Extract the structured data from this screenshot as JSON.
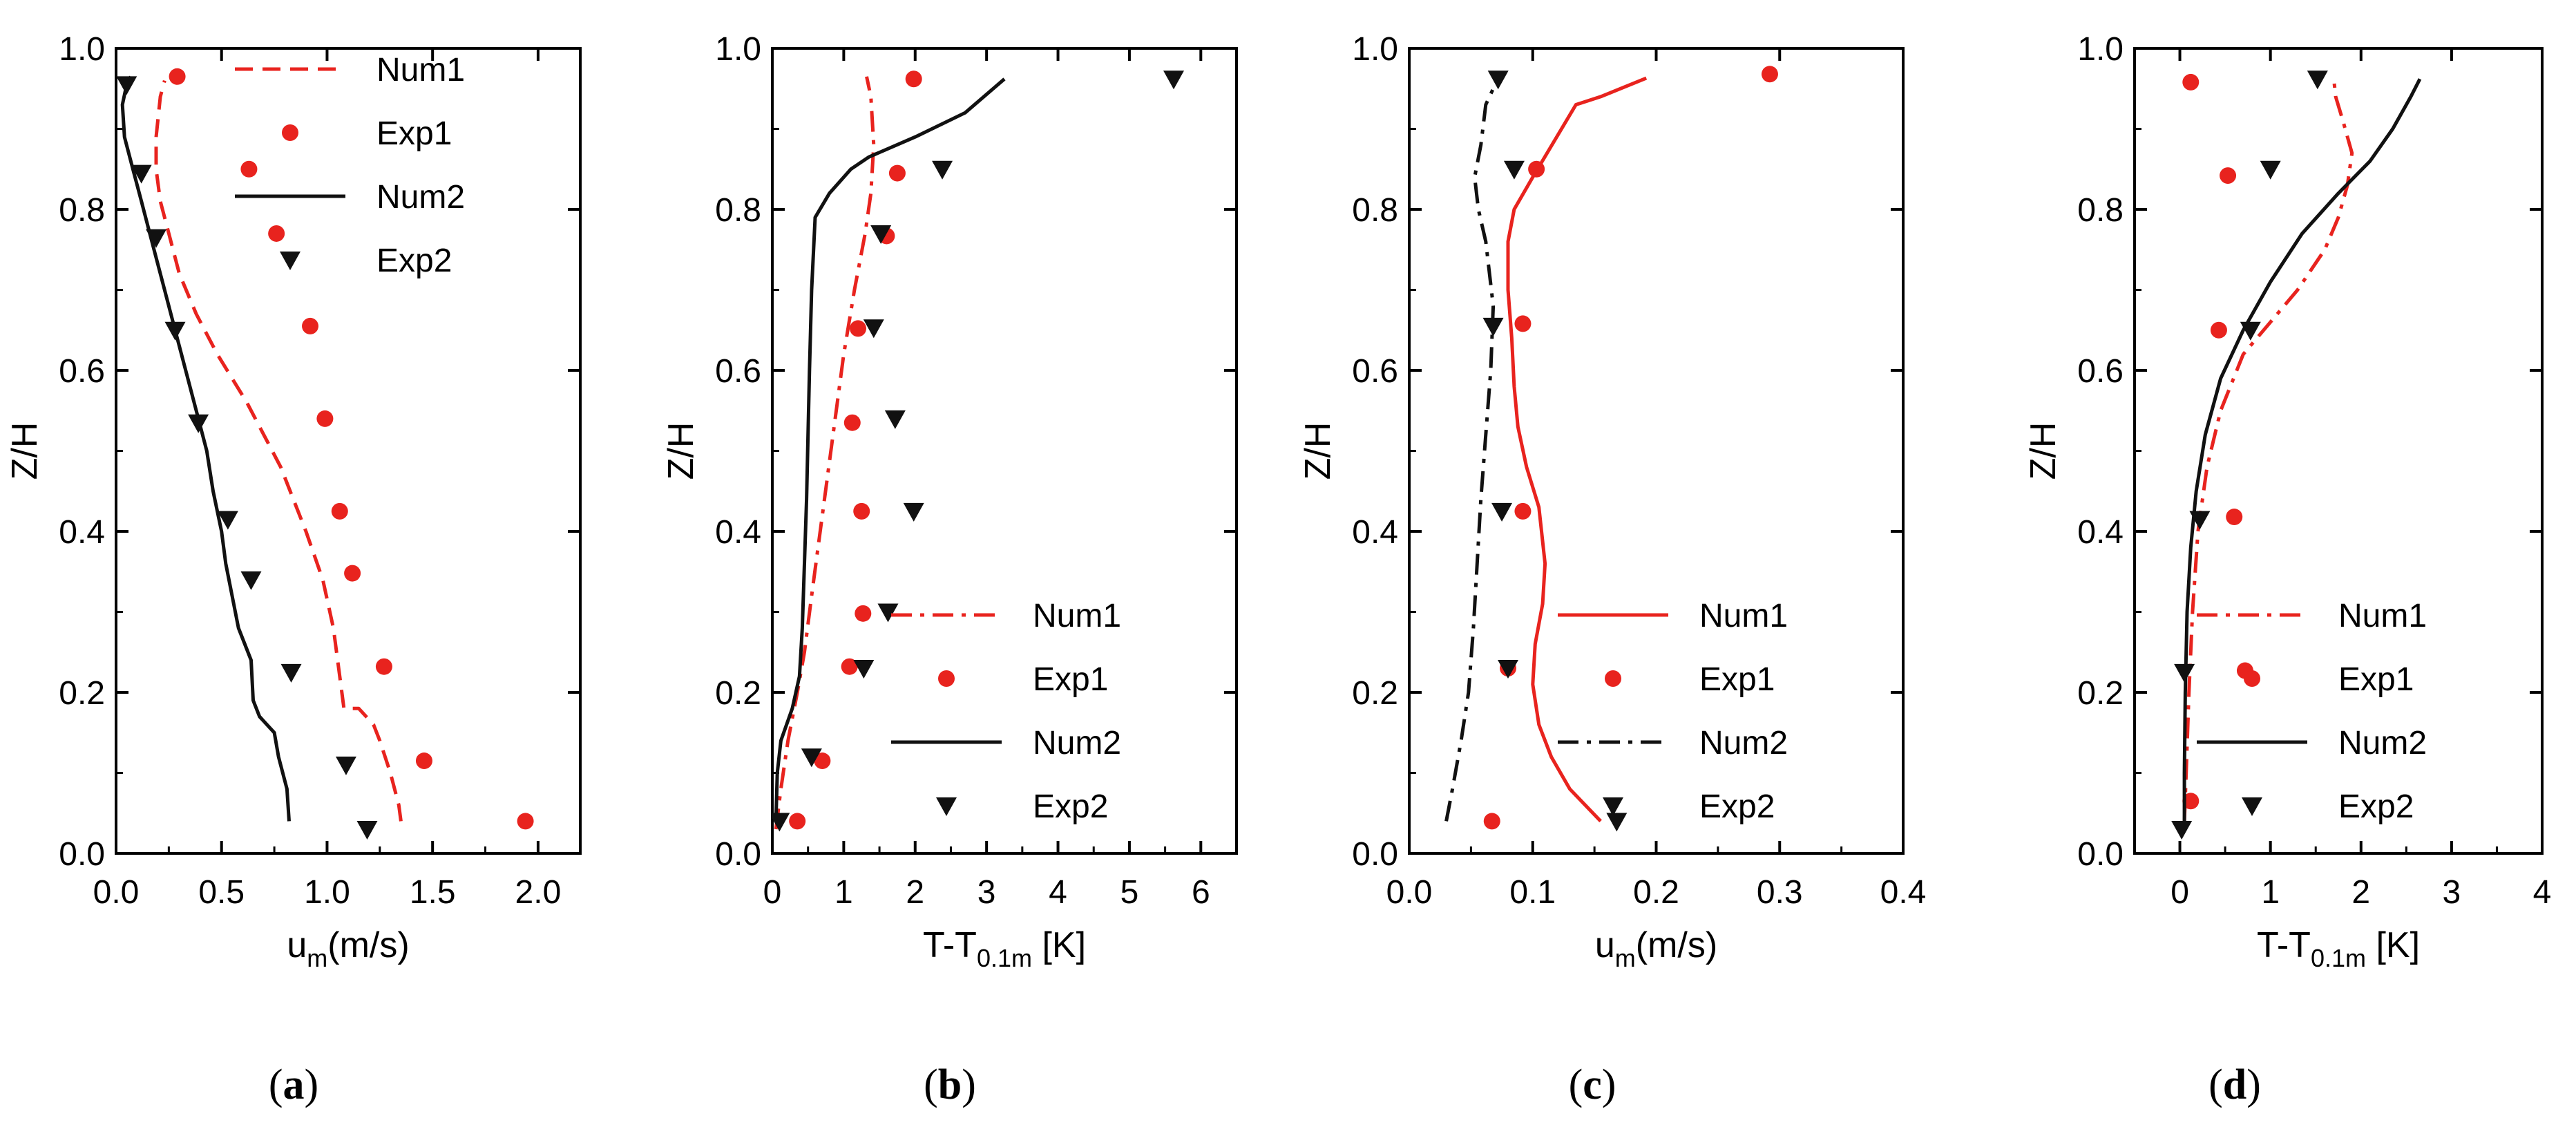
{
  "chart_data": [
    {
      "id": "a",
      "type": "line",
      "caption": "(a)",
      "caption_letter": "a",
      "ylabel": "Z/H",
      "xlabel_main": "u",
      "xlabel_sub": "m",
      "xlabel_tail": "(m/s)",
      "xlim": [
        0,
        2.2
      ],
      "ylim": [
        0,
        1.0
      ],
      "xticks": [
        0,
        0.5,
        1.0,
        1.5,
        2.0
      ],
      "xtick_labels": [
        "0.0",
        "0.5",
        "1.0",
        "1.5",
        "2.0"
      ],
      "yticks": [
        0,
        0.2,
        0.4,
        0.6,
        0.8,
        1.0
      ],
      "ytick_labels": [
        "0.0",
        "0.2",
        "0.4",
        "0.6",
        "0.8",
        "1.0"
      ],
      "legend_position": "top-right",
      "series": [
        {
          "name": "Num1",
          "kind": "line",
          "color": "#e8231e",
          "dash": "dash",
          "x": [
            1.35,
            1.34,
            1.3,
            1.25,
            1.22,
            1.15,
            1.08,
            1.06,
            1.03,
            0.98,
            0.9,
            0.78,
            0.62,
            0.48,
            0.38,
            0.3,
            0.25,
            0.21,
            0.19,
            0.19,
            0.21,
            0.23
          ],
          "y": [
            0.04,
            0.06,
            0.1,
            0.14,
            0.16,
            0.18,
            0.18,
            0.22,
            0.28,
            0.34,
            0.4,
            0.48,
            0.56,
            0.62,
            0.67,
            0.72,
            0.77,
            0.81,
            0.85,
            0.89,
            0.94,
            0.96
          ]
        },
        {
          "name": "Exp1",
          "kind": "markers",
          "marker": "circle",
          "color": "#e8231e",
          "x": [
            1.94,
            1.46,
            1.27,
            1.12,
            1.06,
            0.99,
            0.92,
            0.76,
            0.63,
            0.29
          ],
          "y": [
            0.04,
            0.115,
            0.232,
            0.348,
            0.425,
            0.54,
            0.655,
            0.77,
            0.85,
            0.965
          ]
        },
        {
          "name": "Num2",
          "kind": "line",
          "color": "#111111",
          "dash": "solid",
          "x": [
            0.82,
            0.81,
            0.77,
            0.75,
            0.68,
            0.65,
            0.64,
            0.58,
            0.55,
            0.52,
            0.5,
            0.46,
            0.43,
            0.38,
            0.33,
            0.28,
            0.22,
            0.17,
            0.12,
            0.08,
            0.04,
            0.03,
            0.05,
            0.07
          ],
          "y": [
            0.04,
            0.08,
            0.12,
            0.15,
            0.17,
            0.19,
            0.24,
            0.28,
            0.32,
            0.36,
            0.4,
            0.45,
            0.5,
            0.55,
            0.6,
            0.65,
            0.71,
            0.76,
            0.81,
            0.85,
            0.89,
            0.93,
            0.955,
            0.965
          ]
        },
        {
          "name": "Exp2",
          "kind": "markers",
          "marker": "triangle-down",
          "color": "#111111",
          "x": [
            1.19,
            1.09,
            0.83,
            0.64,
            0.53,
            0.39,
            0.28,
            0.19,
            0.12,
            0.05
          ],
          "y": [
            0.03,
            0.11,
            0.225,
            0.34,
            0.415,
            0.535,
            0.65,
            0.765,
            0.845,
            0.955
          ]
        }
      ]
    },
    {
      "id": "b",
      "type": "line",
      "caption": "(b)",
      "caption_letter": "b",
      "ylabel": "Z/H",
      "xlabel_main": "T-T",
      "xlabel_sub": "0.1m",
      "xlabel_tail": " [K]",
      "xlim": [
        0,
        6.5
      ],
      "ylim": [
        0,
        1.0
      ],
      "xticks": [
        0,
        1,
        2,
        3,
        4,
        5,
        6
      ],
      "xtick_labels": [
        "0",
        "1",
        "2",
        "3",
        "4",
        "5",
        "6"
      ],
      "yticks": [
        0,
        0.2,
        0.4,
        0.6,
        0.8,
        1.0
      ],
      "ytick_labels": [
        "0.0",
        "0.2",
        "0.4",
        "0.6",
        "0.8",
        "1.0"
      ],
      "legend_position": "bottom-right",
      "series": [
        {
          "name": "Num1",
          "kind": "line",
          "color": "#e8231e",
          "dash": "dashdot",
          "x": [
            0.05,
            0.12,
            0.22,
            0.35,
            0.45,
            0.55,
            0.7,
            0.85,
            1.0,
            1.15,
            1.3,
            1.38,
            1.42,
            1.38,
            1.32
          ],
          "y": [
            0.03,
            0.08,
            0.14,
            0.2,
            0.25,
            0.32,
            0.42,
            0.52,
            0.62,
            0.7,
            0.77,
            0.82,
            0.88,
            0.94,
            0.965
          ]
        },
        {
          "name": "Exp1",
          "kind": "markers",
          "marker": "circle",
          "color": "#e8231e",
          "x": [
            0.35,
            0.7,
            1.08,
            1.27,
            1.25,
            1.12,
            1.2,
            1.6,
            1.75,
            1.98
          ],
          "y": [
            0.04,
            0.115,
            0.232,
            0.298,
            0.425,
            0.535,
            0.652,
            0.767,
            0.845,
            0.962
          ]
        },
        {
          "name": "Num2",
          "kind": "line",
          "color": "#111111",
          "dash": "solid",
          "x": [
            0.05,
            0.07,
            0.12,
            0.28,
            0.38,
            0.42,
            0.45,
            0.48,
            0.5,
            0.52,
            0.55,
            0.6,
            0.8,
            1.1,
            1.35,
            2.0,
            2.7,
            3.25
          ],
          "y": [
            0.04,
            0.1,
            0.14,
            0.18,
            0.22,
            0.28,
            0.36,
            0.44,
            0.52,
            0.6,
            0.7,
            0.79,
            0.82,
            0.85,
            0.865,
            0.89,
            0.92,
            0.962
          ]
        },
        {
          "name": "Exp2",
          "kind": "markers",
          "marker": "triangle-down",
          "color": "#111111",
          "x": [
            0.1,
            0.55,
            1.28,
            1.62,
            1.98,
            1.72,
            1.42,
            1.52,
            2.38,
            5.62
          ],
          "y": [
            0.04,
            0.12,
            0.23,
            0.3,
            0.425,
            0.54,
            0.653,
            0.77,
            0.85,
            0.962
          ]
        }
      ]
    },
    {
      "id": "c",
      "type": "line",
      "caption": "(c)",
      "caption_letter": "c",
      "ylabel": "Z/H",
      "xlabel_main": "u",
      "xlabel_sub": "m",
      "xlabel_tail": "(m/s)",
      "xlim": [
        0,
        0.4
      ],
      "ylim": [
        0,
        1.0
      ],
      "xticks": [
        0,
        0.1,
        0.2,
        0.3,
        0.4
      ],
      "xtick_labels": [
        "0.0",
        "0.1",
        "0.2",
        "0.3",
        "0.4"
      ],
      "yticks": [
        0,
        0.2,
        0.4,
        0.6,
        0.8,
        1.0
      ],
      "ytick_labels": [
        "0.0",
        "0.2",
        "0.4",
        "0.6",
        "0.8",
        "1.0"
      ],
      "legend_position": "bottom-right",
      "series": [
        {
          "name": "Num1",
          "kind": "line",
          "color": "#e8231e",
          "dash": "solid",
          "x": [
            0.155,
            0.13,
            0.115,
            0.105,
            0.1,
            0.102,
            0.108,
            0.11,
            0.105,
            0.095,
            0.088,
            0.085,
            0.083,
            0.08,
            0.08,
            0.085,
            0.1,
            0.135,
            0.155,
            0.192
          ],
          "y": [
            0.04,
            0.08,
            0.12,
            0.16,
            0.21,
            0.26,
            0.31,
            0.36,
            0.43,
            0.48,
            0.53,
            0.58,
            0.64,
            0.7,
            0.76,
            0.8,
            0.84,
            0.93,
            0.94,
            0.963
          ]
        },
        {
          "name": "Exp1",
          "kind": "markers",
          "marker": "circle",
          "color": "#e8231e",
          "x": [
            0.067,
            0.08,
            0.092,
            0.092,
            0.103,
            0.292
          ],
          "y": [
            0.04,
            0.23,
            0.425,
            0.658,
            0.85,
            0.968
          ]
        },
        {
          "name": "Num2",
          "kind": "line",
          "color": "#111111",
          "dash": "dashdot",
          "x": [
            0.03,
            0.035,
            0.042,
            0.048,
            0.052,
            0.055,
            0.058,
            0.062,
            0.066,
            0.068,
            0.062,
            0.056,
            0.053,
            0.058,
            0.062,
            0.068,
            0.072,
            0.076
          ],
          "y": [
            0.04,
            0.08,
            0.14,
            0.2,
            0.28,
            0.36,
            0.44,
            0.52,
            0.6,
            0.68,
            0.76,
            0.8,
            0.84,
            0.88,
            0.93,
            0.95,
            0.965,
            0.97
          ]
        },
        {
          "name": "Exp2",
          "kind": "markers",
          "marker": "triangle-down",
          "color": "#111111",
          "x": [
            0.168,
            0.08,
            0.075,
            0.068,
            0.085,
            0.072
          ],
          "y": [
            0.04,
            0.23,
            0.425,
            0.655,
            0.85,
            0.962
          ]
        }
      ]
    },
    {
      "id": "d",
      "type": "line",
      "caption": "(d)",
      "caption_letter": "d",
      "ylabel": "Z/H",
      "xlabel_main": "T-T",
      "xlabel_sub": "0.1m",
      "xlabel_tail": " [K]",
      "xlim": [
        -0.5,
        4.0
      ],
      "ylim": [
        0,
        1.0
      ],
      "xticks": [
        0,
        1,
        2,
        3,
        4
      ],
      "xtick_labels": [
        "0",
        "1",
        "2",
        "3",
        "4"
      ],
      "yticks": [
        0,
        0.2,
        0.4,
        0.6,
        0.8,
        1.0
      ],
      "ytick_labels": [
        "0.0",
        "0.2",
        "0.4",
        "0.6",
        "0.8",
        "1.0"
      ],
      "legend_position": "bottom-right",
      "series": [
        {
          "name": "Num1",
          "kind": "line",
          "color": "#e8231e",
          "dash": "dashdot",
          "x": [
            0.05,
            0.07,
            0.1,
            0.14,
            0.2,
            0.3,
            0.45,
            0.7,
            1.0,
            1.3,
            1.6,
            1.75,
            1.85,
            1.9,
            1.8,
            1.72,
            1.7
          ],
          "y": [
            0.04,
            0.1,
            0.2,
            0.3,
            0.4,
            0.48,
            0.55,
            0.62,
            0.66,
            0.7,
            0.75,
            0.79,
            0.83,
            0.87,
            0.91,
            0.94,
            0.962
          ]
        },
        {
          "name": "Exp1",
          "kind": "markers",
          "marker": "circle",
          "color": "#e8231e",
          "x": [
            0.12,
            0.72,
            0.6,
            0.43,
            0.53,
            0.12
          ],
          "y": [
            0.065,
            0.227,
            0.418,
            0.65,
            0.842,
            0.958
          ]
        },
        {
          "name": "Num2",
          "kind": "line",
          "color": "#111111",
          "dash": "solid",
          "x": [
            0.05,
            0.05,
            0.06,
            0.08,
            0.12,
            0.18,
            0.28,
            0.45,
            0.7,
            1.0,
            1.35,
            1.75,
            2.1,
            2.35,
            2.55,
            2.65
          ],
          "y": [
            0.04,
            0.1,
            0.2,
            0.3,
            0.38,
            0.45,
            0.52,
            0.59,
            0.65,
            0.71,
            0.77,
            0.82,
            0.86,
            0.9,
            0.94,
            0.962
          ]
        },
        {
          "name": "Exp2",
          "kind": "markers",
          "marker": "triangle-down",
          "color": "#111111",
          "x": [
            0.02,
            0.05,
            0.22,
            0.78,
            1.0,
            1.52
          ],
          "y": [
            0.03,
            0.225,
            0.415,
            0.65,
            0.85,
            0.962
          ]
        }
      ]
    }
  ]
}
